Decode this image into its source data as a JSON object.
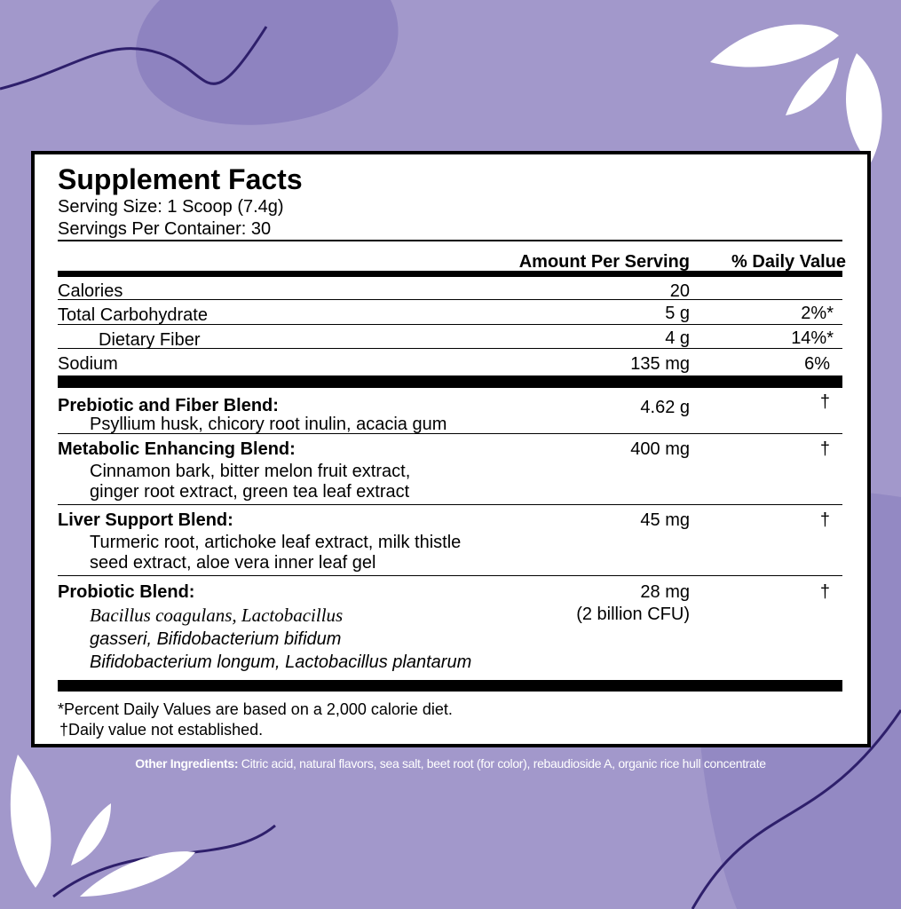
{
  "title": "Supplement Facts",
  "serving_size": "Serving Size: 1 Scoop (7.4g)",
  "servings_per_container": "Servings Per Container: 30",
  "header": {
    "amount": "Amount Per Serving",
    "dv": "% Daily Value"
  },
  "nutrients": [
    {
      "name": "Calories",
      "amount": "20",
      "dv": ""
    },
    {
      "name": "Total Carbohydrate",
      "amount": "5 g",
      "dv": "2%*"
    },
    {
      "name": "Dietary Fiber",
      "amount": "4 g",
      "dv": "14%*"
    },
    {
      "name": "Sodium",
      "amount": "135 mg",
      "dv": "6%"
    }
  ],
  "blends": [
    {
      "name": "Prebiotic and Fiber Blend:",
      "amount": "4.62 g",
      "dv": "†",
      "lines": [
        "Psyllium husk, chicory root inulin, acacia gum"
      ]
    },
    {
      "name": "Metabolic Enhancing Blend:",
      "amount": "400 mg",
      "dv": "†",
      "lines": [
        "Cinnamon bark, bitter melon fruit extract,",
        "ginger root extract, green tea leaf extract"
      ]
    },
    {
      "name": "Liver Support Blend:",
      "amount": "45 mg",
      "dv": "†",
      "lines": [
        "Turmeric root, artichoke leaf extract, milk thistle",
        "seed extract, aloe vera inner leaf gel"
      ]
    },
    {
      "name": "Probiotic Blend:",
      "amount": "28 mg",
      "amount2": "(2 billion CFU)",
      "dv": "†",
      "lines": [
        "Bacillus coagulans, Lactobacillus",
        "gasseri, Bifidobacterium bifidum",
        "Bifidobacterium longum, Lactobacillus plantarum"
      ]
    }
  ],
  "footnotes": [
    "*Percent Daily Values are based on a 2,000 calorie diet.",
    "†Daily value not established."
  ],
  "other_ingredients": {
    "label": "Other Ingredients:",
    "text": " Citric acid, natural flavors, sea salt, beet root (for color), rebaudioside A, organic rice hull concentrate"
  },
  "colors": {
    "background": "#a298cb",
    "panel": "#ffffff",
    "accent_dark": "#2e1f6b"
  }
}
